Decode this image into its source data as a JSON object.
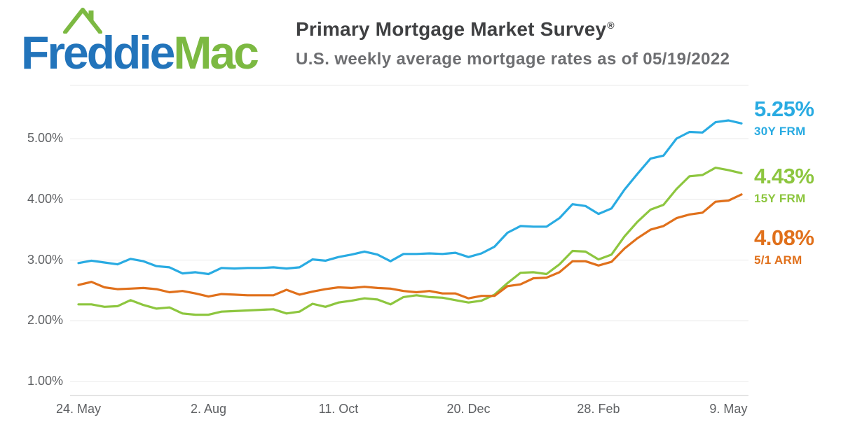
{
  "header": {
    "logo": {
      "freddie": "Freddie",
      "mac": "Mac",
      "freddie_color": "#2274BB",
      "mac_color": "#7CB942"
    },
    "title": "Primary Mortgage Market Survey",
    "title_reg": "®",
    "title_color": "#3F4042",
    "subtitle": "U.S. weekly average mortgage rates as of 05/19/2022",
    "subtitle_color": "#6D6E71"
  },
  "chart_data": {
    "type": "line",
    "title": "Primary Mortgage Market Survey",
    "subtitle": "U.S. weekly average mortgage rates as of 05/19/2022",
    "x_unit": "weekly observations, May 2021 - May 2022",
    "x_tick_labels": [
      "24. May",
      "2. Aug",
      "11. Oct",
      "20. Dec",
      "28. Feb",
      "9. May"
    ],
    "x_tick_indices": [
      0,
      10,
      20,
      30,
      40,
      50
    ],
    "y_ticks": [
      {
        "label": "5.00%",
        "value": 5
      },
      {
        "label": "4.00%",
        "value": 4
      },
      {
        "label": "3.00%",
        "value": 3
      },
      {
        "label": "2.00%",
        "value": 2
      },
      {
        "label": "1.00%",
        "value": 1
      }
    ],
    "ylim": [
      0.75,
      5.9
    ],
    "grid": "horizontal",
    "grid_color": "#E8E8E8",
    "axis_color": "#C9C9C9",
    "tick_label_color": "#5F6164",
    "legend_position": "right-end-labels",
    "series": [
      {
        "name": "30Y FRM",
        "end_label": "5.25%",
        "color": "#29ABE2",
        "values": [
          2.95,
          2.99,
          2.96,
          2.93,
          3.02,
          2.98,
          2.9,
          2.88,
          2.78,
          2.8,
          2.77,
          2.87,
          2.86,
          2.87,
          2.87,
          2.88,
          2.86,
          2.88,
          3.01,
          2.99,
          3.05,
          3.09,
          3.14,
          3.09,
          2.98,
          3.1,
          3.1,
          3.11,
          3.1,
          3.12,
          3.05,
          3.11,
          3.22,
          3.45,
          3.56,
          3.55,
          3.55,
          3.69,
          3.92,
          3.89,
          3.76,
          3.85,
          4.16,
          4.42,
          4.67,
          4.72,
          5.0,
          5.11,
          5.1,
          5.27,
          5.3,
          5.25
        ]
      },
      {
        "name": "15Y FRM",
        "end_label": "4.43%",
        "color": "#8DC63F",
        "values": [
          2.27,
          2.27,
          2.23,
          2.24,
          2.34,
          2.26,
          2.2,
          2.22,
          2.12,
          2.1,
          2.1,
          2.15,
          2.16,
          2.17,
          2.18,
          2.19,
          2.12,
          2.15,
          2.28,
          2.23,
          2.3,
          2.33,
          2.37,
          2.35,
          2.27,
          2.39,
          2.42,
          2.39,
          2.38,
          2.34,
          2.3,
          2.33,
          2.43,
          2.62,
          2.79,
          2.8,
          2.77,
          2.93,
          3.15,
          3.14,
          3.01,
          3.09,
          3.39,
          3.63,
          3.83,
          3.91,
          4.17,
          4.38,
          4.4,
          4.52,
          4.48,
          4.43
        ]
      },
      {
        "name": "5/1 ARM",
        "end_label": "4.08%",
        "color": "#E0701B",
        "values": [
          2.59,
          2.64,
          2.55,
          2.52,
          2.53,
          2.54,
          2.52,
          2.47,
          2.49,
          2.45,
          2.4,
          2.44,
          2.43,
          2.42,
          2.42,
          2.42,
          2.51,
          2.43,
          2.48,
          2.52,
          2.55,
          2.54,
          2.56,
          2.54,
          2.53,
          2.49,
          2.47,
          2.49,
          2.45,
          2.45,
          2.37,
          2.41,
          2.41,
          2.57,
          2.6,
          2.7,
          2.71,
          2.8,
          2.98,
          2.98,
          2.91,
          2.97,
          3.19,
          3.36,
          3.5,
          3.56,
          3.69,
          3.75,
          3.78,
          3.96,
          3.98,
          4.08
        ]
      }
    ]
  }
}
